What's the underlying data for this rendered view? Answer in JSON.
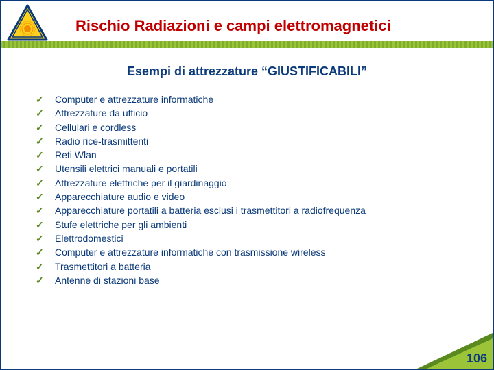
{
  "colors": {
    "title_color": "#c00000",
    "subtitle_color": "#0b3a7a",
    "bullet_text_color": "#0b3a7a",
    "check_color": "#5a8a1f",
    "pagenum_color": "#0b3a7a",
    "warn_border": "#0b3a7a",
    "warn_fill": "#ffd21f",
    "warn_inner": "#f28c00"
  },
  "header": {
    "title": "Rischio Radiazioni e campi elettromagnetici"
  },
  "subtitle": "Esempi di attrezzature “GIUSTIFICABILI”",
  "items": [
    "Computer e attrezzature informatiche",
    "Attrezzature da ufficio",
    "Cellulari e cordless",
    "Radio rice-trasmittenti",
    "Reti Wlan",
    "Utensili elettrici manuali e portatili",
    "Attrezzature elettriche per il giardinaggio",
    "Apparecchiature audio e video",
    "Apparecchiature portatili a batteria esclusi i trasmettitori a radiofrequenza",
    "Stufe elettriche per gli ambienti",
    "Elettrodomestici",
    "Computer e attrezzature informatiche con trasmissione wireless",
    "Trasmettitori a batteria",
    "Antenne di stazioni base"
  ],
  "page_number": "106"
}
